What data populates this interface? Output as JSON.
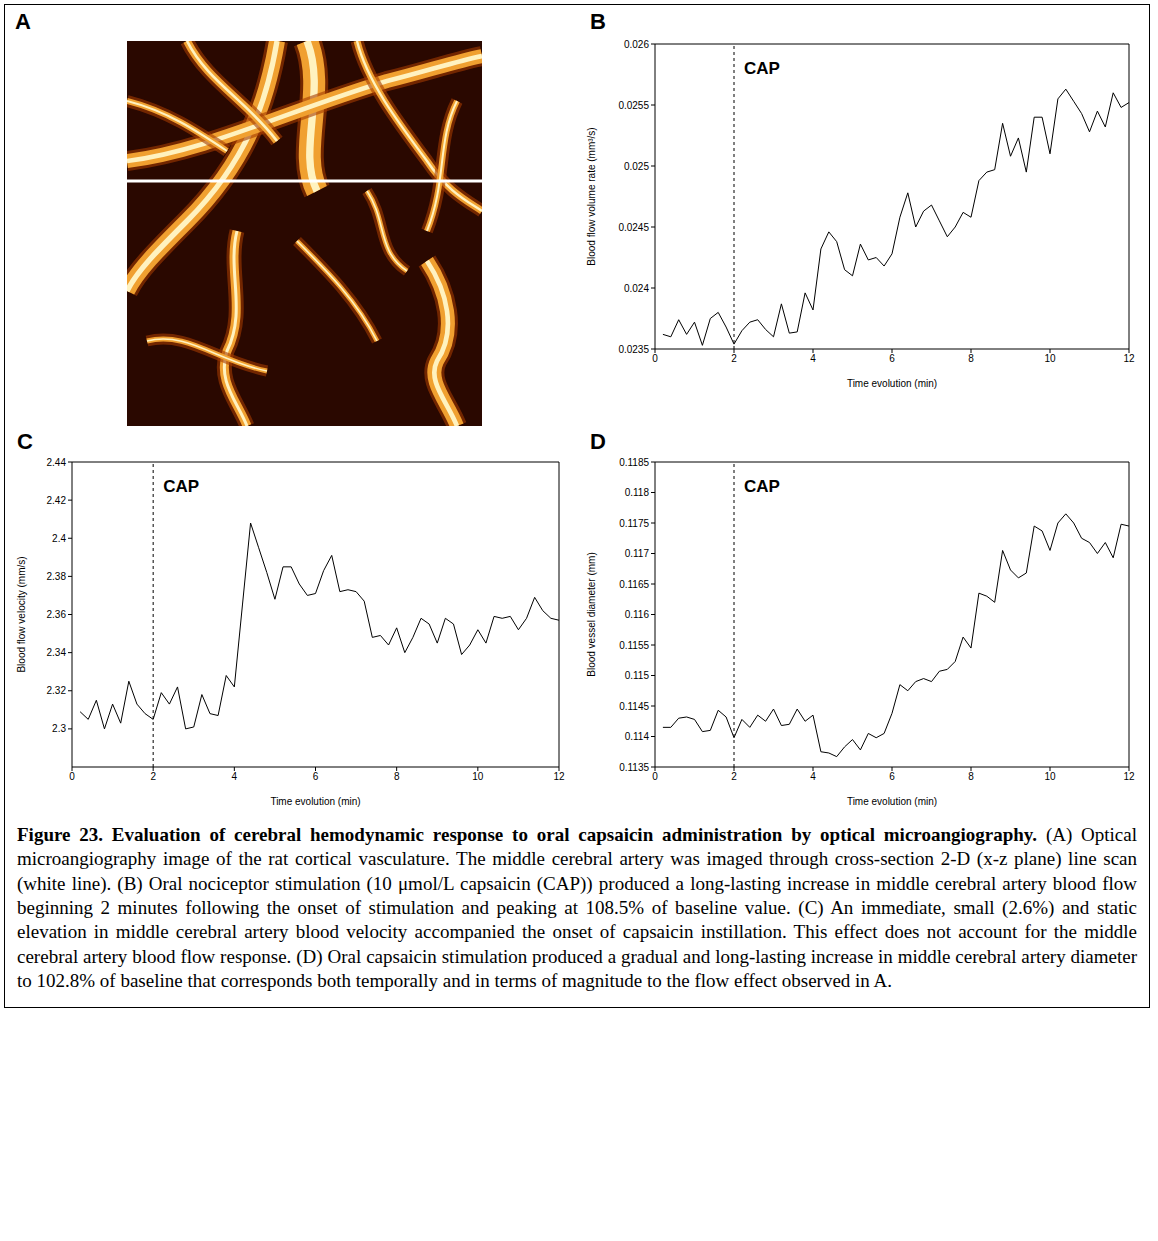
{
  "image_panel": {
    "panel": "A"
  },
  "chart_data": [
    {
      "panel": "B",
      "type": "line",
      "color": "#000000",
      "grid": false,
      "x_label": "Time evolution (min)",
      "y_label": "Blood flow volume rate (mm³/s)",
      "xlim": [
        0,
        12
      ],
      "xticks": [
        0,
        2,
        4,
        6,
        8,
        10,
        12
      ],
      "ylim": [
        0.0235,
        0.026
      ],
      "yticks": [
        0.0235,
        0.024,
        0.0245,
        0.025,
        0.0255,
        0.026
      ],
      "annotations": [
        {
          "x": 2,
          "label": "CAP"
        }
      ],
      "x": [
        0.2,
        0.4,
        0.6,
        0.8,
        1.0,
        1.2,
        1.4,
        1.6,
        1.8,
        2.0,
        2.2,
        2.4,
        2.6,
        2.8,
        3.0,
        3.2,
        3.4,
        3.6,
        3.8,
        4.0,
        4.2,
        4.4,
        4.6,
        4.8,
        5.0,
        5.2,
        5.4,
        5.6,
        5.8,
        6.0,
        6.2,
        6.4,
        6.6,
        6.8,
        7.0,
        7.2,
        7.4,
        7.6,
        7.8,
        8.0,
        8.2,
        8.4,
        8.6,
        8.8,
        9.0,
        9.2,
        9.4,
        9.6,
        9.8,
        10.0,
        10.2,
        10.4,
        10.6,
        10.8,
        11.0,
        11.2,
        11.4,
        11.6,
        11.8,
        12.0
      ],
      "values": [
        0.02362,
        0.0236,
        0.02374,
        0.02362,
        0.02372,
        0.02353,
        0.02375,
        0.0238,
        0.02368,
        0.02354,
        0.02365,
        0.02372,
        0.02374,
        0.02366,
        0.0236,
        0.02387,
        0.02363,
        0.02364,
        0.02396,
        0.02382,
        0.02432,
        0.02446,
        0.02438,
        0.02415,
        0.0241,
        0.02436,
        0.02423,
        0.02425,
        0.02418,
        0.02428,
        0.02458,
        0.02478,
        0.0245,
        0.02463,
        0.02468,
        0.02455,
        0.02442,
        0.0245,
        0.02462,
        0.02458,
        0.02488,
        0.02495,
        0.02497,
        0.02535,
        0.02508,
        0.02523,
        0.02495,
        0.0254,
        0.0254,
        0.0251,
        0.02555,
        0.02563,
        0.02553,
        0.02543,
        0.02528,
        0.02545,
        0.02532,
        0.0256,
        0.02548,
        0.02552
      ]
    },
    {
      "panel": "C",
      "type": "line",
      "color": "#000000",
      "grid": false,
      "x_label": "Time evolution (min)",
      "y_label": "Blood flow velocity (mm/s)",
      "xlim": [
        0,
        12
      ],
      "xticks": [
        0,
        2,
        4,
        6,
        8,
        10,
        12
      ],
      "ylim": [
        2.28,
        2.44
      ],
      "yticks": [
        2.3,
        2.32,
        2.34,
        2.36,
        2.38,
        2.4,
        2.42,
        2.44
      ],
      "annotations": [
        {
          "x": 2,
          "label": "CAP"
        }
      ],
      "x": [
        0.2,
        0.4,
        0.6,
        0.8,
        1.0,
        1.2,
        1.4,
        1.6,
        1.8,
        2.0,
        2.2,
        2.4,
        2.6,
        2.8,
        3.0,
        3.2,
        3.4,
        3.6,
        3.8,
        4.0,
        4.2,
        4.4,
        4.6,
        4.8,
        5.0,
        5.2,
        5.4,
        5.6,
        5.8,
        6.0,
        6.2,
        6.4,
        6.6,
        6.8,
        7.0,
        7.2,
        7.4,
        7.6,
        7.8,
        8.0,
        8.2,
        8.4,
        8.6,
        8.8,
        9.0,
        9.2,
        9.4,
        9.6,
        9.8,
        10.0,
        10.2,
        10.4,
        10.6,
        10.8,
        11.0,
        11.2,
        11.4,
        11.6,
        11.8,
        12.0
      ],
      "values": [
        2.309,
        2.305,
        2.315,
        2.3,
        2.313,
        2.303,
        2.325,
        2.313,
        2.308,
        2.305,
        2.319,
        2.313,
        2.322,
        2.3,
        2.301,
        2.318,
        2.308,
        2.307,
        2.328,
        2.322,
        2.365,
        2.408,
        2.395,
        2.382,
        2.368,
        2.385,
        2.385,
        2.376,
        2.37,
        2.371,
        2.383,
        2.391,
        2.372,
        2.373,
        2.372,
        2.367,
        2.348,
        2.349,
        2.344,
        2.353,
        2.34,
        2.348,
        2.358,
        2.355,
        2.345,
        2.358,
        2.355,
        2.339,
        2.344,
        2.352,
        2.345,
        2.359,
        2.358,
        2.359,
        2.352,
        2.358,
        2.369,
        2.362,
        2.358,
        2.357
      ]
    },
    {
      "panel": "D",
      "type": "line",
      "color": "#000000",
      "grid": false,
      "x_label": "Time evolution (min)",
      "y_label": "Blood vessel diameter (mm)",
      "xlim": [
        0,
        12
      ],
      "xticks": [
        0,
        2,
        4,
        6,
        8,
        10,
        12
      ],
      "ylim": [
        0.1135,
        0.1185
      ],
      "yticks": [
        0.1135,
        0.114,
        0.1145,
        0.115,
        0.1155,
        0.116,
        0.1165,
        0.117,
        0.1175,
        0.118,
        0.1185
      ],
      "annotations": [
        {
          "x": 2,
          "label": "CAP"
        }
      ],
      "x": [
        0.2,
        0.4,
        0.6,
        0.8,
        1.0,
        1.2,
        1.4,
        1.6,
        1.8,
        2.0,
        2.2,
        2.4,
        2.6,
        2.8,
        3.0,
        3.2,
        3.4,
        3.6,
        3.8,
        4.0,
        4.2,
        4.4,
        4.6,
        4.8,
        5.0,
        5.2,
        5.4,
        5.6,
        5.8,
        6.0,
        6.2,
        6.4,
        6.6,
        6.8,
        7.0,
        7.2,
        7.4,
        7.6,
        7.8,
        8.0,
        8.2,
        8.4,
        8.6,
        8.8,
        9.0,
        9.2,
        9.4,
        9.6,
        9.8,
        10.0,
        10.2,
        10.4,
        10.6,
        10.8,
        11.0,
        11.2,
        11.4,
        11.6,
        11.8,
        12.0
      ],
      "values": [
        0.11415,
        0.11415,
        0.1143,
        0.11432,
        0.11428,
        0.11408,
        0.1141,
        0.11443,
        0.11432,
        0.11398,
        0.11428,
        0.11415,
        0.11435,
        0.11425,
        0.11445,
        0.11418,
        0.1142,
        0.11445,
        0.11425,
        0.11435,
        0.11375,
        0.11373,
        0.11367,
        0.11383,
        0.11395,
        0.11378,
        0.11405,
        0.11398,
        0.11405,
        0.11438,
        0.11485,
        0.11475,
        0.1149,
        0.11495,
        0.1149,
        0.11507,
        0.1151,
        0.11523,
        0.11563,
        0.11545,
        0.11635,
        0.1163,
        0.1162,
        0.11705,
        0.11673,
        0.1166,
        0.11668,
        0.11745,
        0.11737,
        0.11705,
        0.1175,
        0.11765,
        0.1175,
        0.11725,
        0.11718,
        0.117,
        0.11718,
        0.11693,
        0.11748,
        0.11745
      ]
    }
  ],
  "caption": {
    "title": "Figure 23. Evaluation of cerebral hemodynamic response to oral capsaicin administration by optical microangiography.",
    "text": "(A) Optical microangiography image of the rat cortical vasculature. The middle cerebral artery was imaged through cross-section 2-D (x-z plane) line scan (white line). (B) Oral nociceptor stimulation (10 μmol/L capsaicin (CAP)) produced a long-lasting increase in middle cerebral artery blood flow beginning 2 minutes following the onset of stimulation and peaking at 108.5% of baseline value. (C) An immediate, small (2.6%) and static elevation in middle cerebral artery blood velocity accompanied the onset of capsaicin instillation. This effect does not account for the middle cerebral artery blood flow response. (D) Oral capsaicin stimulation produced a gradual and long-lasting increase in middle cerebral artery diameter to 102.8% of baseline that corresponds both temporally and in terms of magnitude to the flow effect observed in A."
  }
}
